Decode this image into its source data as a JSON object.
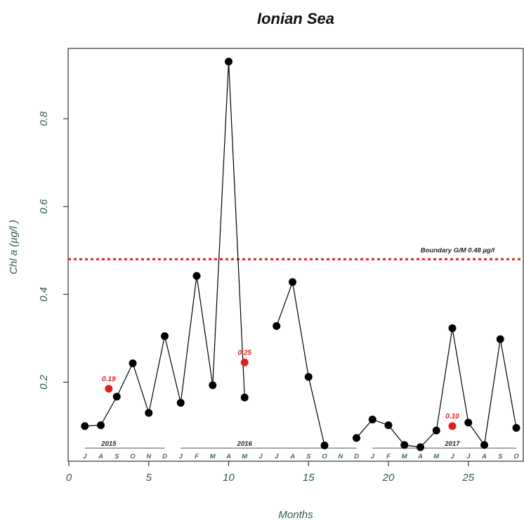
{
  "chart_data": {
    "type": "line",
    "title": "Ionian Sea",
    "xlabel": "Months",
    "ylabel": "Chl a (µg/l )",
    "xlim": [
      0,
      28
    ],
    "ylim": [
      0.02,
      0.96
    ],
    "x_ticks": [
      0,
      5,
      10,
      15,
      20,
      25
    ],
    "y_ticks": [
      0.2,
      0.4,
      0.6,
      0.8
    ],
    "series": [
      {
        "color": "#000000",
        "segments": [
          [
            [
              1,
              0.1
            ],
            [
              2,
              0.102
            ],
            [
              3,
              0.167
            ],
            [
              4,
              0.243
            ],
            [
              5,
              0.13
            ],
            [
              6,
              0.305
            ],
            [
              7,
              0.153
            ],
            [
              8,
              0.442
            ],
            [
              9,
              0.193
            ],
            [
              10,
              0.93
            ],
            [
              11,
              0.165
            ]
          ],
          [
            [
              13,
              0.328
            ],
            [
              14,
              0.428
            ],
            [
              15,
              0.212
            ],
            [
              16,
              0.056
            ]
          ],
          [
            [
              18,
              0.073
            ],
            [
              19,
              0.115
            ],
            [
              20,
              0.102
            ],
            [
              21,
              0.057
            ],
            [
              22,
              0.052
            ],
            [
              23,
              0.09
            ],
            [
              24,
              0.323
            ],
            [
              25,
              0.108
            ],
            [
              26,
              0.057
            ],
            [
              27,
              0.298
            ],
            [
              28,
              0.096
            ]
          ]
        ]
      }
    ],
    "highlight_points": [
      {
        "x": 2.5,
        "y": 0.185,
        "label": "0.19",
        "color": "#e02020"
      },
      {
        "x": 11,
        "y": 0.245,
        "label": "0.25",
        "color": "#e02020"
      },
      {
        "x": 24,
        "y": 0.1,
        "label": "0.10",
        "color": "#e02020"
      }
    ],
    "reference_line": {
      "y": 0.48,
      "label": "Boundary G/M 0.48 µg/l",
      "color": "#e02020",
      "style": "dotted"
    },
    "month_labels": [
      "J",
      "A",
      "S",
      "O",
      "N",
      "D",
      "J",
      "F",
      "M",
      "A",
      "M",
      "J",
      "J",
      "A",
      "S",
      "O",
      "N",
      "D",
      "J",
      "F",
      "M",
      "A",
      "M",
      "J",
      "J",
      "A",
      "S",
      "O"
    ],
    "years": [
      {
        "label": "2015",
        "x_from": 1,
        "x_to": 6,
        "label_x": 2.5
      },
      {
        "label": "2016",
        "x_from": 7,
        "x_to": 18,
        "label_x": 11
      },
      {
        "label": "2017",
        "x_from": 19,
        "x_to": 28,
        "label_x": 24
      }
    ]
  }
}
